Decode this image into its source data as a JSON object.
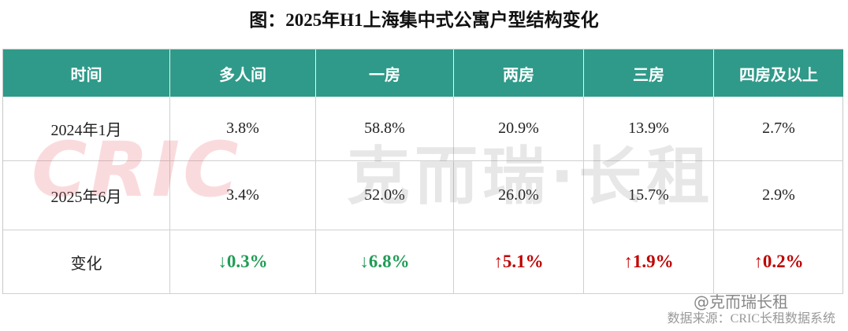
{
  "title": "图：2025年H1上海集中式公寓户型结构变化",
  "table": {
    "header": [
      "时间",
      "多人间",
      "一房",
      "两房",
      "三房",
      "四房及以上"
    ],
    "rows": [
      [
        "2024年1月",
        "3.8%",
        "58.8%",
        "20.9%",
        "13.9%",
        "2.7%"
      ],
      [
        "2025年6月",
        "3.4%",
        "52.0%",
        "26.0%",
        "15.7%",
        "2.9%"
      ],
      [
        "变化",
        "↓0.3%",
        "↓6.8%",
        "↑5.1%",
        "↑1.9%",
        "↑0.2%"
      ]
    ]
  },
  "watermark": {
    "logo": "CRIC",
    "name": "克而瑞·长租",
    "handle": "@克而瑞长租"
  },
  "source": "数据来源：CRIC长租数据系统"
}
